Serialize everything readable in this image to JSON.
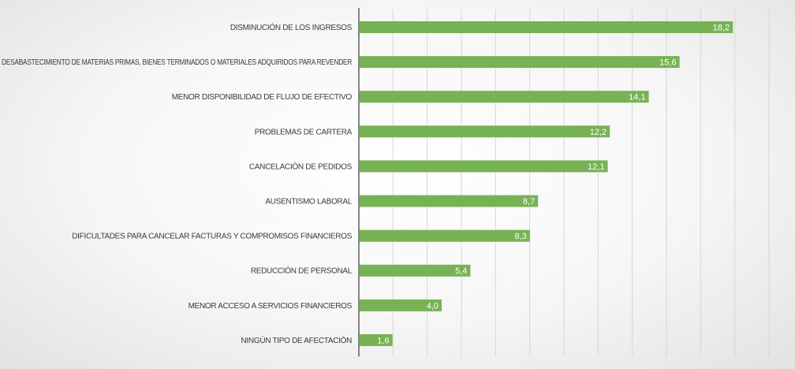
{
  "chart_data": {
    "type": "bar",
    "orientation": "horizontal",
    "title": "",
    "xlabel": "",
    "ylabel": "",
    "xlim": [
      0,
      20
    ],
    "grid": true,
    "legend": "none",
    "bar_color": "#77b255",
    "categories": [
      "DISMINUCIÓN DE LOS INGRESOS",
      "DESABASTECIMIENTO DE MATERIAS PRIMAS, BIENES TERMINADOS O MATERIALES ADQUIRIDOS PARA REVENDER",
      "MENOR DISPONIBILIDAD DE FLUJO DE EFECTIVO",
      "PROBLEMAS DE CARTERA",
      "CANCELACIÓN DE PEDIDOS",
      "AUSENTISMO LABORAL",
      "DIFICULTADES PARA CANCELAR FACTURAS Y COMPROMISOS FINANCIEROS",
      "REDUCCIÓN DE PERSONAL",
      "MENOR ACCESO A SERVICIOS FINANCIEROS",
      "NINGÚN TIPO DE AFECTACIÓN"
    ],
    "values": [
      18.2,
      15.6,
      14.1,
      12.2,
      12.1,
      8.7,
      8.3,
      5.4,
      4.0,
      1.6
    ],
    "value_labels": [
      "18,2",
      "15,6",
      "14,1",
      "12,2",
      "12,1",
      "8,7",
      "8,3",
      "5,4",
      "4,0",
      "1,6"
    ]
  }
}
